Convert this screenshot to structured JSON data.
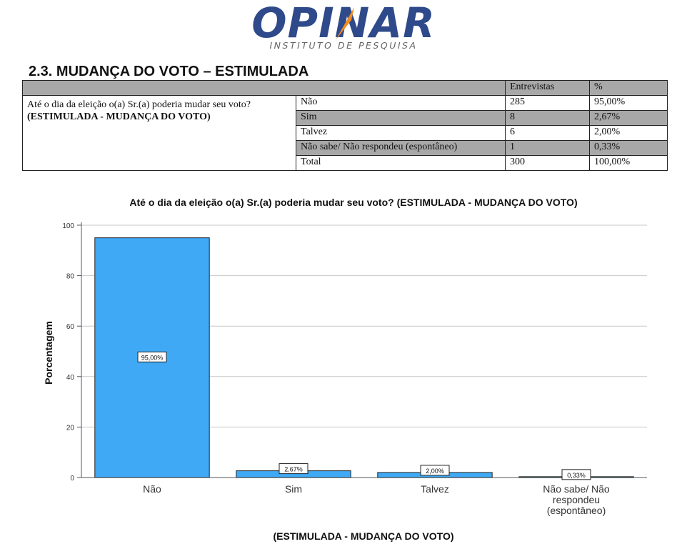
{
  "logo": {
    "brand": "OPINAR",
    "subtitle": "INSTITUTO DE PESQUISA"
  },
  "section_title": "2.3. MUDANÇA DO VOTO – ESTIMULADA",
  "table": {
    "headers": [
      "Entrevistas",
      "%"
    ],
    "question_text": "Até o dia da eleição o(a) Sr.(a) poderia mudar seu voto?",
    "question_tag": "(ESTIMULADA - MUDANÇA DO VOTO)",
    "rows": [
      {
        "option": "Não",
        "count": "285",
        "pct": "95,00%"
      },
      {
        "option": "Sim",
        "count": "8",
        "pct": "2,67%"
      },
      {
        "option": "Talvez",
        "count": "6",
        "pct": "2,00%"
      },
      {
        "option": "Não sabe/ Não respondeu (espontâneo)",
        "count": "1",
        "pct": "0,33%"
      },
      {
        "option": "Total",
        "count": "300",
        "pct": "100,00%"
      }
    ]
  },
  "chart_data": {
    "type": "bar",
    "title": "Até o dia da eleição o(a) Sr.(a) poderia mudar seu voto? (ESTIMULADA - MUDANÇA DO VOTO)",
    "xlabel": "(ESTIMULADA - MUDANÇA DO VOTO)",
    "ylabel": "Porcentagem",
    "categories": [
      "Não",
      "Sim",
      "Talvez",
      "Não sabe/ Não respondeu (espontâneo)"
    ],
    "category_lines": [
      [
        "Não"
      ],
      [
        "Sim"
      ],
      [
        "Talvez"
      ],
      [
        "Não sabe/ Não",
        "respondeu",
        "(espontâneo)"
      ]
    ],
    "values": [
      95.0,
      2.67,
      2.0,
      0.33
    ],
    "data_labels": [
      "95,00%",
      "2,67%",
      "2,00%",
      "0,33%"
    ],
    "ylim": [
      0,
      100
    ],
    "yticks": [
      0,
      20,
      40,
      60,
      80,
      100
    ],
    "grid": true,
    "legend": "none",
    "bar_color": "#3fa9f5"
  }
}
